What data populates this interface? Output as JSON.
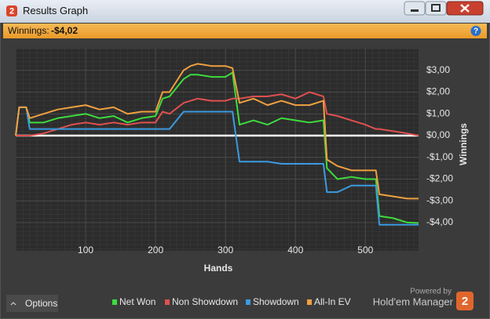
{
  "window": {
    "app_icon": "2",
    "title": "Results Graph"
  },
  "header": {
    "label": "Winnings:",
    "value": "-$4,02",
    "help": "?"
  },
  "footer": {
    "options": "Options",
    "powered_by": "Powered by",
    "brand": "Hold'em Manager",
    "logo": "2"
  },
  "chart_data": {
    "type": "line",
    "x_label": "Hands",
    "y_label": "Winnings",
    "x": [
      0,
      5,
      15,
      20,
      40,
      60,
      80,
      100,
      120,
      140,
      160,
      180,
      200,
      210,
      220,
      240,
      250,
      260,
      280,
      300,
      310,
      320,
      340,
      360,
      380,
      400,
      420,
      440,
      445,
      460,
      480,
      500,
      515,
      520,
      540,
      560,
      576
    ],
    "series": [
      {
        "name": "Net Won",
        "color": "#3ddc3d",
        "values": [
          0,
          1.3,
          1.3,
          0.6,
          0.6,
          0.8,
          0.9,
          1.0,
          0.8,
          0.9,
          0.6,
          0.8,
          0.9,
          1.7,
          1.8,
          2.6,
          2.8,
          2.8,
          2.7,
          2.7,
          2.9,
          0.5,
          0.7,
          0.5,
          0.8,
          0.7,
          0.6,
          0.7,
          -1.5,
          -2.0,
          -1.9,
          -2.0,
          -2.0,
          -3.7,
          -3.8,
          -4.0,
          -4.02
        ]
      },
      {
        "name": "Non Showdown",
        "color": "#e05050",
        "values": [
          0,
          0,
          0,
          0,
          0.1,
          0.3,
          0.5,
          0.6,
          0.5,
          0.6,
          0.5,
          0.6,
          0.6,
          1.1,
          1.0,
          1.5,
          1.6,
          1.7,
          1.6,
          1.6,
          1.7,
          1.7,
          1.8,
          1.8,
          1.9,
          1.7,
          2.0,
          1.8,
          1.0,
          0.9,
          0.7,
          0.5,
          0.3,
          0.3,
          0.2,
          0.1,
          0.0
        ]
      },
      {
        "name": "Showdown",
        "color": "#3a9be0",
        "values": [
          0,
          1.3,
          1.3,
          0.3,
          0.3,
          0.3,
          0.3,
          0.3,
          0.3,
          0.3,
          0.3,
          0.3,
          0.3,
          0.3,
          0.3,
          1.1,
          1.1,
          1.1,
          1.1,
          1.1,
          1.1,
          -1.2,
          -1.2,
          -1.2,
          -1.3,
          -1.3,
          -1.3,
          -1.3,
          -2.6,
          -2.6,
          -2.3,
          -2.3,
          -2.3,
          -4.1,
          -4.1,
          -4.1,
          -4.1
        ]
      },
      {
        "name": "All-In EV",
        "color": "#f0a040",
        "values": [
          0,
          1.3,
          1.3,
          0.8,
          1.0,
          1.2,
          1.3,
          1.4,
          1.2,
          1.3,
          1.0,
          1.1,
          1.1,
          2.0,
          2.0,
          3.0,
          3.2,
          3.3,
          3.2,
          3.2,
          3.1,
          1.5,
          1.7,
          1.4,
          1.6,
          1.4,
          1.4,
          1.6,
          -1.1,
          -1.4,
          -1.6,
          -1.6,
          -1.6,
          -2.7,
          -2.8,
          -2.9,
          -2.9
        ]
      }
    ],
    "xlim": [
      0,
      576
    ],
    "xticks": [
      100,
      200,
      300,
      400,
      500
    ],
    "ylim": [
      -5.3,
      4.0
    ],
    "yticks": [
      {
        "value": -4,
        "label": "-$4,00"
      },
      {
        "value": -3,
        "label": "-$3,00"
      },
      {
        "value": -2,
        "label": "-$2,00"
      },
      {
        "value": -1,
        "label": "-$1,00"
      },
      {
        "value": 0,
        "label": "$0,00"
      },
      {
        "value": 1,
        "label": "$1,00"
      },
      {
        "value": 2,
        "label": "$2,00"
      },
      {
        "value": 3,
        "label": "$3,00"
      }
    ],
    "grid": true
  }
}
